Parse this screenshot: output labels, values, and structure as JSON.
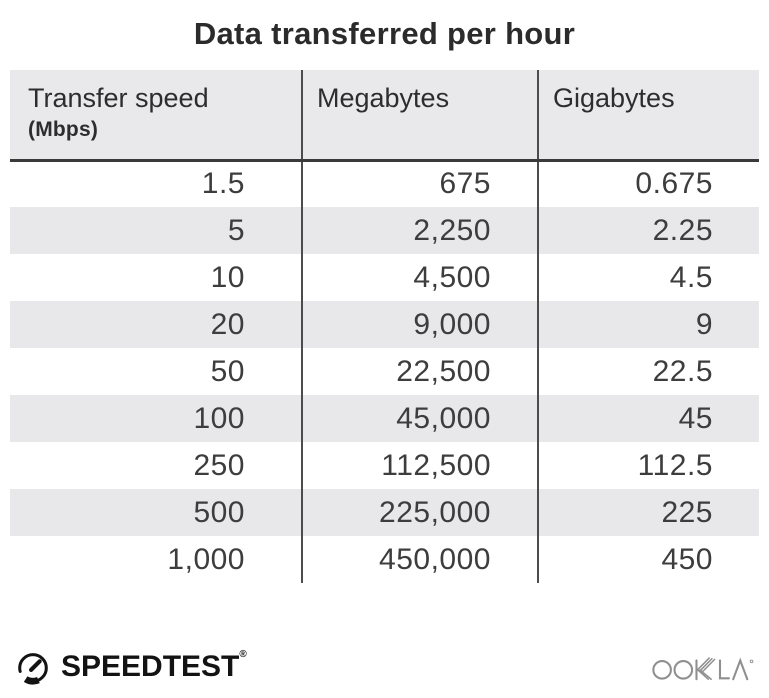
{
  "title": "Data transferred per hour",
  "table": {
    "columns": [
      {
        "label": "Transfer speed",
        "sublabel": "(Mbps)"
      },
      {
        "label": "Megabytes"
      },
      {
        "label": "Gigabytes"
      }
    ],
    "rows": [
      [
        "1.5",
        "675",
        "0.675"
      ],
      [
        "5",
        "2,250",
        "2.25"
      ],
      [
        "10",
        "4,500",
        "4.5"
      ],
      [
        "20",
        "9,000",
        "9"
      ],
      [
        "50",
        "22,500",
        "22.5"
      ],
      [
        "100",
        "45,000",
        "45"
      ],
      [
        "250",
        "112,500",
        "112.5"
      ],
      [
        "500",
        "225,000",
        "225"
      ],
      [
        "1,000",
        "450,000",
        "450"
      ]
    ]
  },
  "chart_data": {
    "type": "table",
    "title": "Data transferred per hour",
    "columns": [
      "Transfer speed (Mbps)",
      "Megabytes",
      "Gigabytes"
    ],
    "rows": [
      [
        1.5,
        675,
        0.675
      ],
      [
        5,
        2250,
        2.25
      ],
      [
        10,
        4500,
        4.5
      ],
      [
        20,
        9000,
        9
      ],
      [
        50,
        22500,
        22.5
      ],
      [
        100,
        45000,
        45
      ],
      [
        250,
        112500,
        112.5
      ],
      [
        500,
        225000,
        225
      ],
      [
        1000,
        450000,
        450
      ]
    ]
  },
  "footer": {
    "speedtest_label": "SPEEDTEST",
    "speedtest_reg": "®",
    "ookla_label": "OOKLA",
    "speedtest_icon": "gauge-icon",
    "ookla_icon": "ookla-wordmark"
  },
  "colors": {
    "title_text": "#2b2b2b",
    "header_bg": "#e9e9eb",
    "row_stripe": "#e8e8eb",
    "divider": "#4c4c4c",
    "header_rule": "#3a3a3a",
    "body_text": "#3d3d3d",
    "speedtest_black": "#131313",
    "ookla_gray": "#8f8f8f"
  }
}
